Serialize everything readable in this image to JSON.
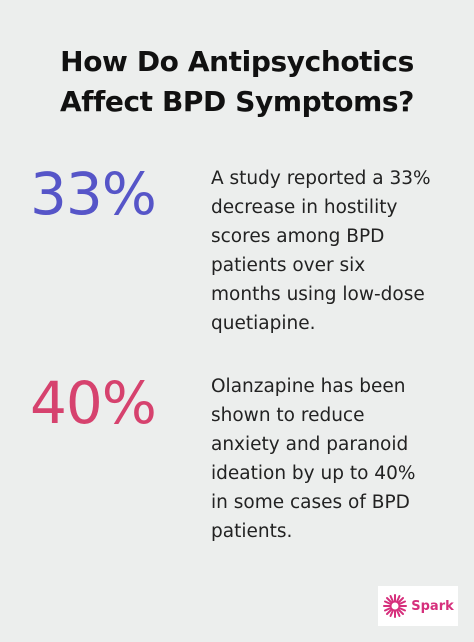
{
  "title": {
    "line1": "How Do Antipsychotics",
    "line2": "Affect BPD Symptoms?"
  },
  "stats": [
    {
      "value": "33%",
      "color": "#5655c8",
      "lines": [
        "A study reported a 33%",
        "decrease in hostility",
        "scores among BPD",
        "patients over six",
        "months using low-dose",
        "quetiapine."
      ]
    },
    {
      "value": "40%",
      "color": "#d6426e",
      "lines": [
        "Olanzapine has been",
        "shown to reduce",
        "anxiety and paranoid",
        "ideation by up to 40%",
        "in some cases of BPD",
        "patients."
      ]
    }
  ],
  "logo": {
    "text": "Spark",
    "color": "#d62f7c",
    "icon": "spark-burst-icon"
  }
}
